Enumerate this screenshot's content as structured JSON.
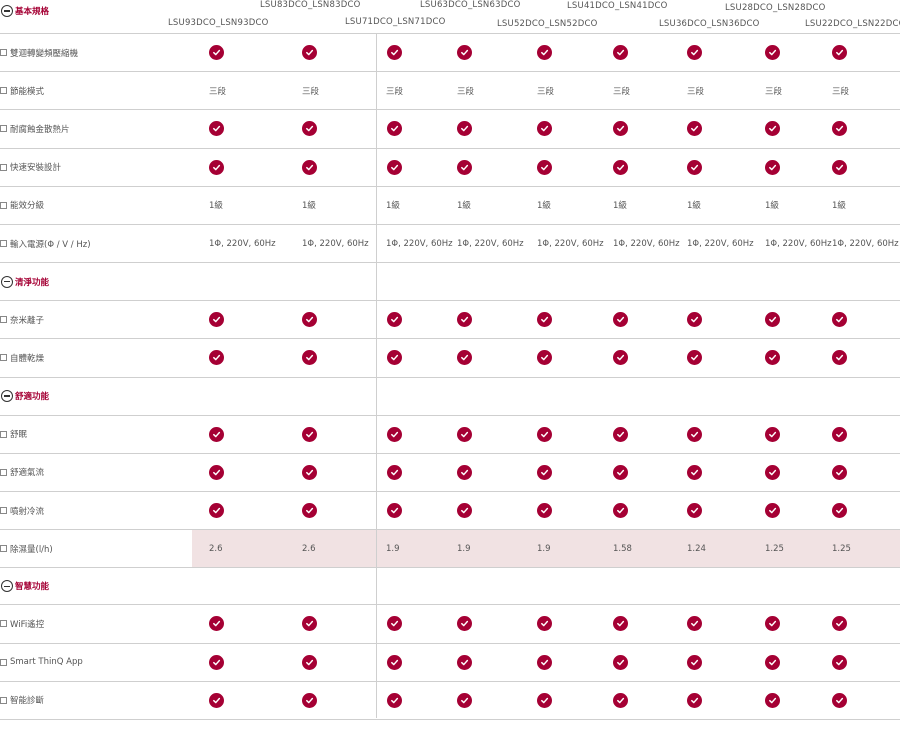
{
  "models": [
    {
      "label": "LSU93DCO_LSN93DCO"
    },
    {
      "label": "LSU83DCO_LSN83DCO"
    },
    {
      "label": "LSU71DCO_LSN71DCO"
    },
    {
      "label": "LSU63DCO_LSN63DCO"
    },
    {
      "label": "LSU52DCO_LSN52DCO"
    },
    {
      "label": "LSU41DCO_LSN41DCO"
    },
    {
      "label": "LSU36DCO_LSN36DCO"
    },
    {
      "label": "LSU28DCO_LSN28DCO"
    },
    {
      "label": "LSU22DCO_LSN22DCO"
    }
  ],
  "sections": [
    {
      "title": "基本規格",
      "rows": [
        {
          "label": "雙迴轉變頻壓縮機",
          "type": "check"
        },
        {
          "label": "節能模式",
          "type": "text",
          "values": [
            "三段",
            "三段",
            "三段",
            "三段",
            "三段",
            "三段",
            "三段",
            "三段",
            "三段"
          ]
        },
        {
          "label": "耐腐蝕金散熱片",
          "type": "check"
        },
        {
          "label": "快速安裝設計",
          "type": "check"
        },
        {
          "label": "能效分級",
          "type": "text",
          "values": [
            "1級",
            "1級",
            "1級",
            "1級",
            "1級",
            "1級",
            "1級",
            "1級",
            "1級"
          ]
        },
        {
          "label": "輸入電源(Φ / V / Hz)",
          "type": "text",
          "values": [
            "1Φ, 220V, 60Hz",
            "1Φ, 220V, 60Hz",
            "1Φ, 220V, 60Hz",
            "1Φ, 220V, 60Hz",
            "1Φ, 220V, 60Hz",
            "1Φ, 220V, 60Hz",
            "1Φ, 220V, 60Hz",
            "1Φ, 220V, 60Hz",
            "1Φ, 220V, 60Hz"
          ]
        }
      ]
    },
    {
      "title": "清淨功能",
      "rows": [
        {
          "label": "奈米離子",
          "type": "check"
        },
        {
          "label": "自體乾燥",
          "type": "check"
        }
      ]
    },
    {
      "title": "舒適功能",
      "rows": [
        {
          "label": "舒眠",
          "type": "check"
        },
        {
          "label": "舒適氣流",
          "type": "check"
        },
        {
          "label": "噴射冷流",
          "type": "check"
        },
        {
          "label": "除濕量(l/h)",
          "type": "text",
          "highlight": true,
          "values": [
            "2.6",
            "2.6",
            "1.9",
            "1.9",
            "1.9",
            "1.58",
            "1.24",
            "1.25",
            "1.25"
          ]
        }
      ]
    },
    {
      "title": "智慧功能",
      "rows": [
        {
          "label": "WiFi遙控",
          "type": "check"
        },
        {
          "label": "Smart ThinQ App",
          "type": "check"
        },
        {
          "label": "智能診斷",
          "type": "check"
        }
      ]
    }
  ],
  "colors": {
    "accent": "#a50034",
    "highlight": "#f1e2e3",
    "border": "#cfcfcf"
  },
  "icons": {
    "check": "check-circle-icon",
    "section": "collapse-minus-icon",
    "row": "checkbox-icon"
  }
}
